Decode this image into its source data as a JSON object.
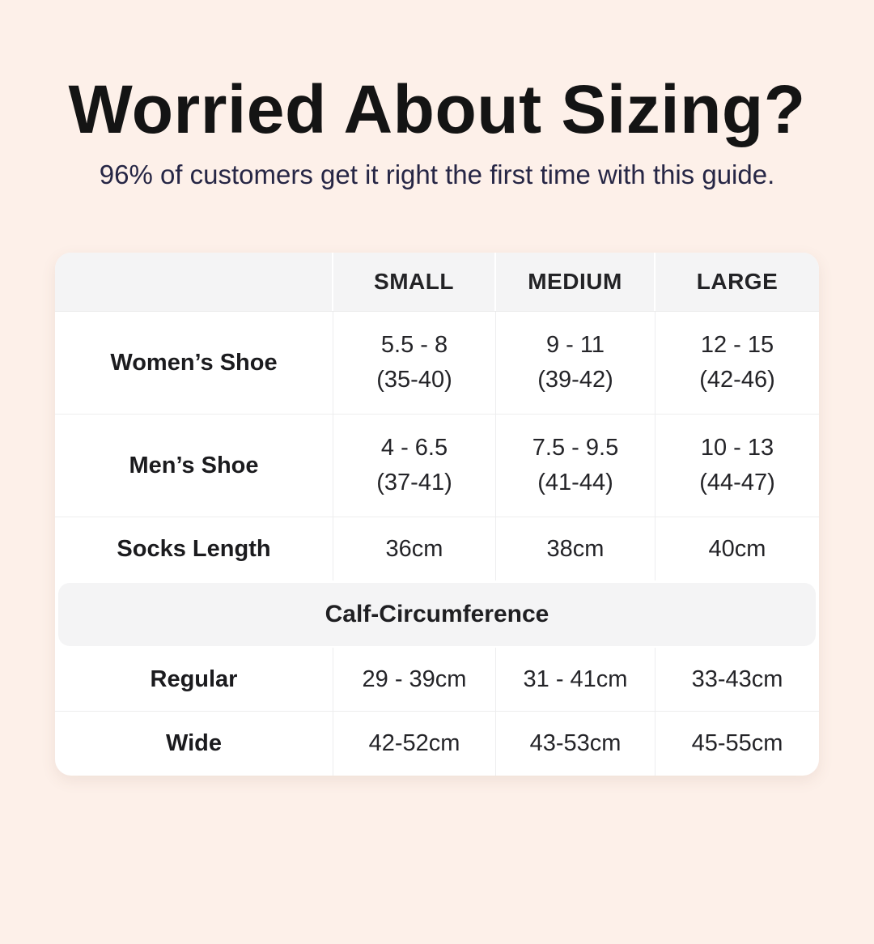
{
  "header": {
    "title": "Worried About Sizing?",
    "subtitle": "96% of customers get it right the first time with this guide."
  },
  "colors": {
    "background": "#fdf0e9",
    "title_text": "#141414",
    "subtitle_text": "#262645",
    "table_header_fill": "#f4f4f5",
    "section_band_fill": "#f4f4f5",
    "card_fill": "#ffffff"
  },
  "table": {
    "columns": [
      "SMALL",
      "MEDIUM",
      "LARGE"
    ],
    "shoe_rows": [
      {
        "label": "Women’s Shoe",
        "cells": [
          {
            "line1": "5.5 - 8",
            "line2": "(35-40)"
          },
          {
            "line1": "9 - 11",
            "line2": "(39-42)"
          },
          {
            "line1": "12 - 15",
            "line2": "(42-46)"
          }
        ]
      },
      {
        "label": "Men’s Shoe",
        "cells": [
          {
            "line1": "4 - 6.5",
            "line2": "(37-41)"
          },
          {
            "line1": "7.5 - 9.5",
            "line2": "(41-44)"
          },
          {
            "line1": "10 - 13",
            "line2": "(44-47)"
          }
        ]
      }
    ],
    "socks_row": {
      "label": "Socks Length",
      "cells": [
        "36cm",
        "38cm",
        "40cm"
      ]
    },
    "section_header": "Calf-Circumference",
    "calf_rows": [
      {
        "label": "Regular",
        "cells": [
          "29 - 39cm",
          "31 - 41cm",
          "33-43cm"
        ]
      },
      {
        "label": "Wide",
        "cells": [
          "42-52cm",
          "43-53cm",
          "45-55cm"
        ]
      }
    ]
  }
}
